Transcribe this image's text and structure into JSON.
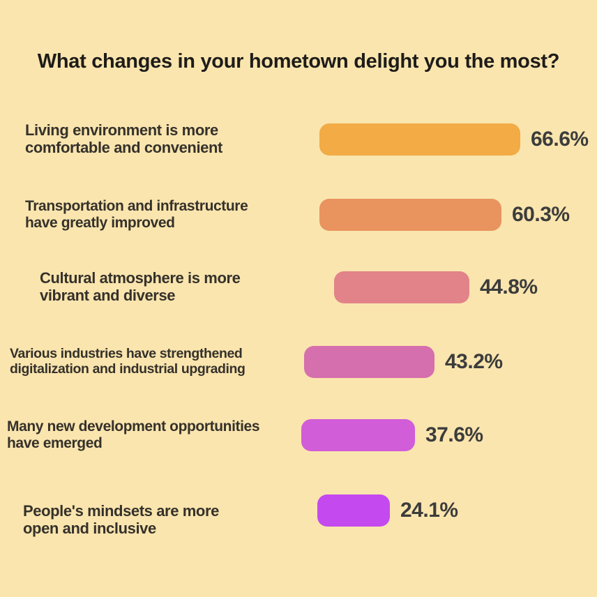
{
  "title": "What changes in your hometown delight you the most?",
  "chart_data": {
    "type": "bar",
    "orientation": "horizontal",
    "title": "What changes in your hometown delight you the most?",
    "categories": [
      "Living environment is more comfortable and convenient",
      "Transportation and infrastructure have greatly improved",
      "Cultural atmosphere is more vibrant and diverse",
      "Various industries have strengthened digitalization and industrial upgrading",
      "Many new development opportunities have emerged",
      "People's mindsets are more open and inclusive"
    ],
    "values": [
      66.6,
      60.3,
      44.8,
      43.2,
      37.6,
      24.1
    ],
    "value_suffix": "%",
    "xlim": [
      0,
      70
    ],
    "grid": false,
    "legend": false,
    "data_labels": [
      "66.6%",
      "60.3%",
      "44.8%",
      "43.2%",
      "37.6%",
      "24.1%"
    ],
    "bar_colors": [
      "#F2AB45",
      "#E9935F",
      "#E28389",
      "#D56FAD",
      "#D15DD8",
      "#C44AF0"
    ],
    "background_color": "#FAE5AE",
    "label_text_color": "#35312B",
    "value_text_color": "#3C3C3C"
  },
  "rows": [
    {
      "lines": [
        "Living environment is more",
        "comfortable and convenient"
      ],
      "value": 66.6,
      "value_label": "66.6%",
      "color": "#F2AB45"
    },
    {
      "lines": [
        "Transportation and infrastructure",
        "have greatly improved"
      ],
      "value": 60.3,
      "value_label": "60.3%",
      "color": "#E9935F"
    },
    {
      "lines": [
        "Cultural atmosphere is more",
        "vibrant and diverse"
      ],
      "value": 44.8,
      "value_label": "44.8%",
      "color": "#E28389"
    },
    {
      "lines": [
        "Various industries have strengthened",
        "digitalization and industrial upgrading"
      ],
      "value": 43.2,
      "value_label": "43.2%",
      "color": "#D56FAD"
    },
    {
      "lines": [
        "Many new development opportunities",
        "have emerged"
      ],
      "value": 37.6,
      "value_label": "37.6%",
      "color": "#D15DD8"
    },
    {
      "lines": [
        "People's mindsets are more",
        "open and inclusive"
      ],
      "value": 24.1,
      "value_label": "24.1%",
      "color": "#C44AF0"
    }
  ]
}
